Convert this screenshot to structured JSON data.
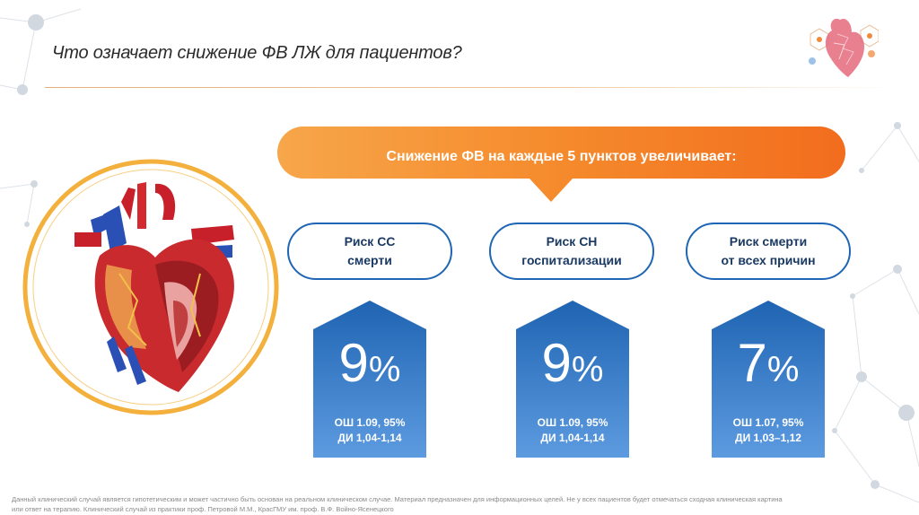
{
  "slide": {
    "title": "Что означает снижение ФВ ЛЖ для пациентов?",
    "banner": "Снижение ФВ на каждые 5 пунктов увеличивает:",
    "accent_color": "#f57a1f",
    "blue_color": "#1f66b5",
    "risks": [
      {
        "line1": "Риск СС",
        "line2": "смерти",
        "value": "9",
        "unit": "%",
        "or_text": "ОШ 1.09, 95%",
        "ci_text": "ДИ 1,04-1,14"
      },
      {
        "line1": "Риск СН",
        "line2": "госпитализации",
        "value": "9",
        "unit": "%",
        "or_text": "ОШ 1.09, 95%",
        "ci_text": "ДИ 1,04-1,14"
      },
      {
        "line1": "Риск смерти",
        "line2": "от всех причин",
        "value": "7",
        "unit": "%",
        "or_text": "ОШ 1.07, 95%",
        "ci_text": "ДИ 1,03–1,12"
      }
    ],
    "footnote_line1": "Данный клинический случай является гипотетическим и может частично быть основан на реальном клиническом случае. Материал предназначен для информационных целей. Не у всех пациентов будет отмечаться сходная клиническая картина",
    "footnote_line2": "или ответ на терапию. Клинический случай из практики проф. Петровой М.М., КрасГМУ им. проф. В.Ф. Войно-Ясенецкого",
    "icons": [
      "heart-illustration-icon",
      "logo-heart-icon",
      "network-background-icon"
    ]
  }
}
